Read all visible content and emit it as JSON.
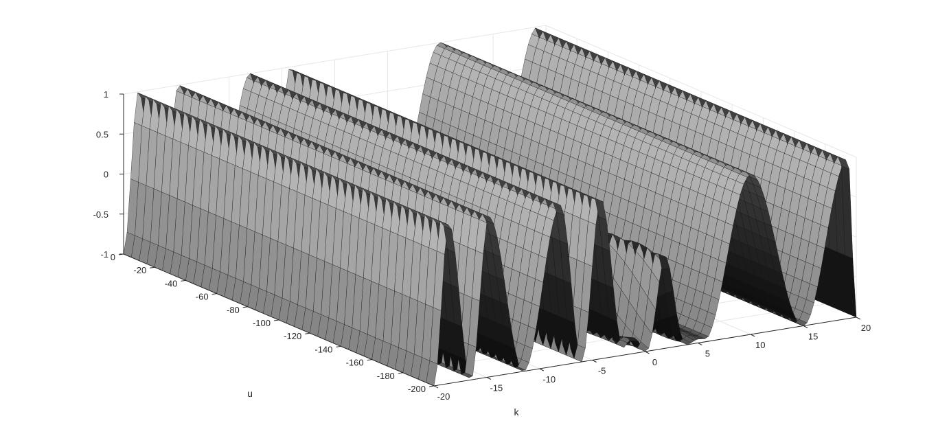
{
  "chart_data": {
    "type": "surface",
    "title": "",
    "xlabel": "k",
    "ylabel": "u",
    "zlabel": "",
    "xlim": [
      -20,
      20
    ],
    "ylim": [
      -200,
      0
    ],
    "zlim": [
      -1,
      1
    ],
    "x_ticks": [
      -20,
      -15,
      -10,
      -5,
      0,
      5,
      10,
      15,
      20
    ],
    "y_ticks": [
      0,
      -20,
      -40,
      -60,
      -80,
      -100,
      -120,
      -140,
      -160,
      -180,
      -200
    ],
    "z_ticks": [
      -1,
      -0.5,
      0,
      0.5,
      1
    ],
    "grid": true,
    "colormap": "gray",
    "surface": {
      "description_of_shape": "Ridges of z(k,u) reaching 1 along k ≈ -19, -15, -8, -4, 10, 19 with troughs of -1 between them, and a disturbed region near k ≈ -1 to 5",
      "ridge_k": [
        -18.6,
        -14.8,
        -8.0,
        -4.2,
        10.0,
        19.2
      ],
      "trough_k": [
        -16.5,
        -11.5,
        -6.0,
        -2.0,
        5.5,
        15.0
      ],
      "z_max": 1,
      "z_min": -1
    }
  }
}
